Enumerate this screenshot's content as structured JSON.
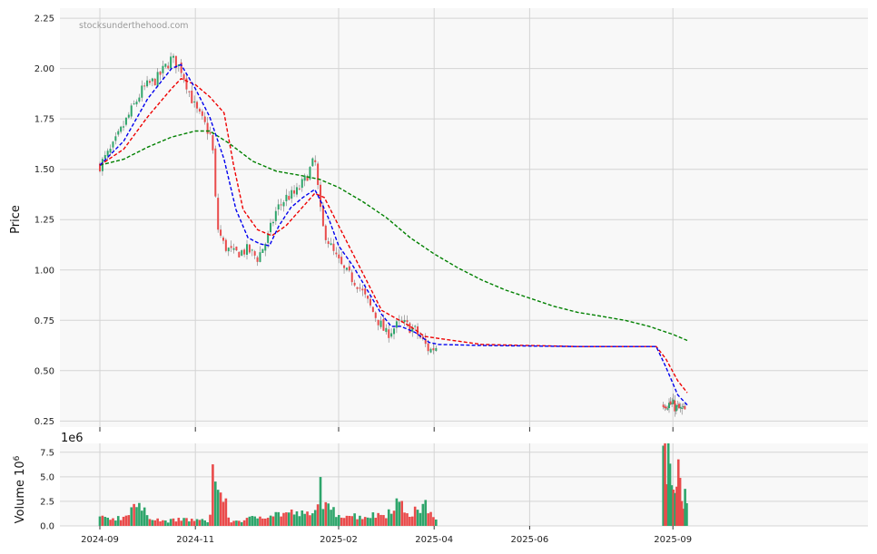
{
  "chart_data": [
    {
      "type": "candlestick",
      "watermark": "stocksunderthehood.com",
      "ylabel": "Price",
      "ylim": [
        0.22,
        2.3
      ],
      "yticks": [
        "0.25",
        "0.50",
        "0.75",
        "1.00",
        "1.25",
        "1.50",
        "1.75",
        "2.00",
        "2.25"
      ],
      "x_dates": [
        "2024-09",
        "2024-11",
        "2025-02",
        "2025-04",
        "2025-06",
        "2025-09"
      ],
      "x_tick_months": [
        0,
        2,
        5,
        7,
        9,
        12
      ],
      "grid": true,
      "colors": {
        "up": "#2ea56b",
        "down": "#e94b4b",
        "ma_fast": "#0000ee",
        "ma_mid": "#ee0000",
        "ma_slow": "#008000",
        "panel_bg": "#f8f8f8",
        "grid": "#d4d4d4"
      },
      "price_path": [
        [
          0,
          1.52
        ],
        [
          0.25,
          1.6
        ],
        [
          0.5,
          1.72
        ],
        [
          0.9,
          1.9
        ],
        [
          1.2,
          1.95
        ],
        [
          1.5,
          2.05
        ],
        [
          1.7,
          2.0
        ],
        [
          2.0,
          1.8
        ],
        [
          2.2,
          1.72
        ],
        [
          2.35,
          1.65
        ],
        [
          2.45,
          1.22
        ],
        [
          2.6,
          1.12
        ],
        [
          2.8,
          1.08
        ],
        [
          3.1,
          1.1
        ],
        [
          3.3,
          1.06
        ],
        [
          3.5,
          1.15
        ],
        [
          3.7,
          1.3
        ],
        [
          3.9,
          1.36
        ],
        [
          4.1,
          1.38
        ],
        [
          4.3,
          1.45
        ],
        [
          4.5,
          1.55
        ],
        [
          4.65,
          1.22
        ],
        [
          4.9,
          1.08
        ],
        [
          5.1,
          1.0
        ],
        [
          5.4,
          0.93
        ],
        [
          5.7,
          0.8
        ],
        [
          6.0,
          0.68
        ],
        [
          6.3,
          0.74
        ],
        [
          6.6,
          0.7
        ],
        [
          6.9,
          0.6
        ],
        [
          7.05,
          0.62
        ]
      ],
      "late_path": [
        [
          11.8,
          0.34
        ],
        [
          12.0,
          0.33
        ],
        [
          12.1,
          0.31
        ],
        [
          12.25,
          0.3
        ]
      ],
      "ma_fast": [
        [
          0,
          1.52
        ],
        [
          0.5,
          1.64
        ],
        [
          1.0,
          1.85
        ],
        [
          1.5,
          2.0
        ],
        [
          1.7,
          2.02
        ],
        [
          2.0,
          1.9
        ],
        [
          2.3,
          1.76
        ],
        [
          2.6,
          1.55
        ],
        [
          2.85,
          1.3
        ],
        [
          3.1,
          1.16
        ],
        [
          3.35,
          1.13
        ],
        [
          3.55,
          1.12
        ],
        [
          3.75,
          1.22
        ],
        [
          4.0,
          1.31
        ],
        [
          4.25,
          1.36
        ],
        [
          4.5,
          1.4
        ],
        [
          4.65,
          1.33
        ],
        [
          4.8,
          1.25
        ],
        [
          5.0,
          1.12
        ],
        [
          5.3,
          1.02
        ],
        [
          5.6,
          0.9
        ],
        [
          5.9,
          0.78
        ],
        [
          6.1,
          0.72
        ],
        [
          6.3,
          0.72
        ],
        [
          6.6,
          0.69
        ],
        [
          6.9,
          0.64
        ],
        [
          7.1,
          0.63
        ],
        [
          8,
          0.625
        ],
        [
          10,
          0.62
        ],
        [
          11.65,
          0.62
        ],
        [
          11.85,
          0.52
        ],
        [
          12.1,
          0.38
        ],
        [
          12.3,
          0.33
        ]
      ],
      "ma_mid": [
        [
          0,
          1.52
        ],
        [
          0.5,
          1.6
        ],
        [
          1.0,
          1.76
        ],
        [
          1.5,
          1.9
        ],
        [
          1.7,
          1.95
        ],
        [
          2.0,
          1.92
        ],
        [
          2.3,
          1.86
        ],
        [
          2.6,
          1.78
        ],
        [
          2.8,
          1.52
        ],
        [
          3.0,
          1.3
        ],
        [
          3.3,
          1.2
        ],
        [
          3.6,
          1.17
        ],
        [
          3.9,
          1.22
        ],
        [
          4.2,
          1.3
        ],
        [
          4.5,
          1.38
        ],
        [
          4.7,
          1.36
        ],
        [
          5.0,
          1.22
        ],
        [
          5.3,
          1.08
        ],
        [
          5.6,
          0.94
        ],
        [
          5.9,
          0.8
        ],
        [
          6.2,
          0.76
        ],
        [
          6.5,
          0.72
        ],
        [
          6.8,
          0.67
        ],
        [
          7.1,
          0.66
        ],
        [
          8,
          0.63
        ],
        [
          10,
          0.62
        ],
        [
          11.65,
          0.62
        ],
        [
          11.85,
          0.56
        ],
        [
          12.1,
          0.45
        ],
        [
          12.3,
          0.39
        ]
      ],
      "ma_slow": [
        [
          0,
          1.52
        ],
        [
          0.5,
          1.55
        ],
        [
          1.0,
          1.61
        ],
        [
          1.5,
          1.66
        ],
        [
          2.0,
          1.69
        ],
        [
          2.3,
          1.69
        ],
        [
          2.7,
          1.63
        ],
        [
          3.2,
          1.54
        ],
        [
          3.7,
          1.49
        ],
        [
          4.2,
          1.47
        ],
        [
          4.6,
          1.45
        ],
        [
          5.0,
          1.41
        ],
        [
          5.5,
          1.34
        ],
        [
          6.0,
          1.26
        ],
        [
          6.5,
          1.16
        ],
        [
          7.0,
          1.08
        ],
        [
          7.5,
          1.01
        ],
        [
          8,
          0.95
        ],
        [
          8.5,
          0.9
        ],
        [
          9,
          0.86
        ],
        [
          9.5,
          0.82
        ],
        [
          10,
          0.79
        ],
        [
          10.5,
          0.77
        ],
        [
          11,
          0.75
        ],
        [
          11.5,
          0.72
        ],
        [
          12.0,
          0.68
        ],
        [
          12.3,
          0.65
        ]
      ]
    },
    {
      "type": "bar",
      "ylabel": "Volume  10",
      "ylabel_sup": "6",
      "scale_label": "1e6",
      "ylim": [
        0,
        8.4
      ],
      "yticks": [
        "0.0",
        "2.5",
        "5.0",
        "7.5"
      ],
      "volume_path": [
        [
          0,
          0.8
        ],
        [
          0.5,
          0.9
        ],
        [
          0.7,
          2.4
        ],
        [
          1.0,
          1.2
        ],
        [
          1.3,
          0.5
        ],
        [
          1.8,
          0.7
        ],
        [
          2.3,
          0.5
        ],
        [
          2.35,
          6.0
        ],
        [
          2.45,
          4.4
        ],
        [
          2.55,
          2.9
        ],
        [
          2.6,
          3.6
        ],
        [
          2.7,
          0.5
        ],
        [
          3.0,
          0.6
        ],
        [
          3.5,
          1.2
        ],
        [
          4.0,
          1.4
        ],
        [
          4.5,
          1.1
        ],
        [
          4.6,
          5.0
        ],
        [
          4.7,
          2.0
        ],
        [
          5.0,
          1.3
        ],
        [
          5.5,
          1.0
        ],
        [
          6.0,
          1.3
        ],
        [
          6.2,
          2.6
        ],
        [
          6.5,
          1.2
        ],
        [
          6.8,
          2.2
        ],
        [
          7.0,
          1.2
        ],
        [
          7.05,
          0.4
        ]
      ],
      "late_volume": [
        [
          11.8,
          7.6
        ],
        [
          11.9,
          6.8
        ],
        [
          12.0,
          4.0
        ],
        [
          12.1,
          7.3
        ],
        [
          12.15,
          6.9
        ],
        [
          12.2,
          2.0
        ],
        [
          12.25,
          3.5
        ],
        [
          12.3,
          1.6
        ]
      ]
    }
  ]
}
